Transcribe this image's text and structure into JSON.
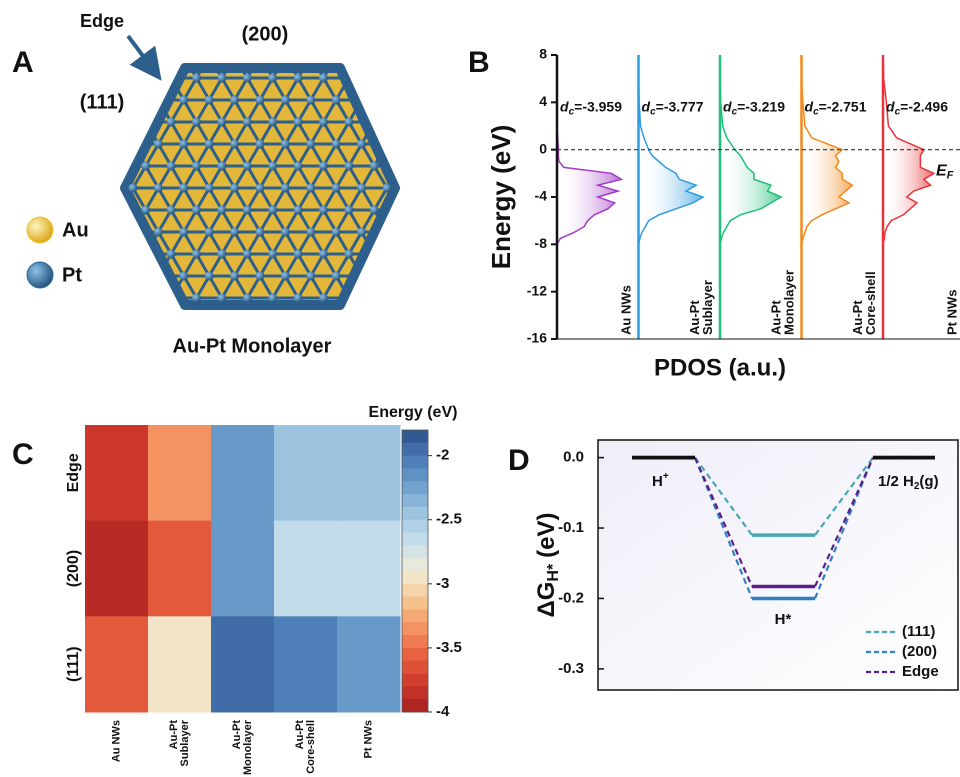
{
  "panel_a": {
    "label": "A",
    "edge": "Edge",
    "facet_top": "(200)",
    "facet_side": "(111)",
    "legend": [
      {
        "name": "Au",
        "color": "#f2c230"
      },
      {
        "name": "Pt",
        "color": "#2e6a9a"
      }
    ],
    "caption": "Au-Pt Monolayer"
  },
  "chart_data": [
    {
      "type": "pdos",
      "panel": "B",
      "xlabel": "PDOS (a.u.)",
      "ylabel": "Energy (eV)",
      "ylim": [
        -16,
        8
      ],
      "yticks": [
        -16,
        -12,
        -8,
        -4,
        0,
        4,
        8
      ],
      "xlim": [
        0,
        1.2
      ],
      "fermi_level": 0,
      "fermi_label": {
        "symbol": "E",
        "subscript": "F"
      },
      "dc_symbol": "d",
      "dc_subscript": "c",
      "dc_sep": "=",
      "y": [
        -8,
        -7.5,
        -7,
        -6.5,
        -6,
        -5.5,
        -5,
        -4.5,
        -4,
        -3.5,
        -3,
        -2.5,
        -2,
        -1.5,
        -1,
        -0.5,
        0,
        1,
        2,
        4,
        6,
        8
      ],
      "series": [
        {
          "name": [
            "Au NWs"
          ],
          "color": "#a23cc7",
          "dc": -3.959,
          "values": [
            0,
            0.05,
            0.25,
            0.4,
            0.45,
            0.55,
            0.75,
            0.85,
            0.6,
            0.9,
            0.6,
            0.95,
            0.8,
            0.1,
            0.03,
            0.02,
            0.02,
            0.01,
            0,
            0,
            0,
            0
          ]
        },
        {
          "name": [
            "Au-Pt",
            "Sublayer"
          ],
          "color": "#2f9be0",
          "dc": -3.777,
          "values": [
            0,
            0.02,
            0.05,
            0.1,
            0.15,
            0.3,
            0.55,
            0.8,
            0.95,
            0.7,
            0.85,
            0.6,
            0.55,
            0.4,
            0.3,
            0.2,
            0.15,
            0.08,
            0.03,
            0.01,
            0,
            0
          ]
        },
        {
          "name": [
            "Au-Pt",
            "Monolayer"
          ],
          "color": "#1fbf7a",
          "dc": -3.219,
          "values": [
            0,
            0.02,
            0.05,
            0.1,
            0.15,
            0.3,
            0.6,
            0.75,
            0.9,
            0.7,
            0.75,
            0.5,
            0.5,
            0.4,
            0.35,
            0.3,
            0.22,
            0.1,
            0.04,
            0.01,
            0,
            0
          ]
        },
        {
          "name": [
            "Au-Pt",
            "Core-shell"
          ],
          "color": "#f28a1e",
          "dc": -2.751,
          "values": [
            0,
            0.02,
            0.05,
            0.08,
            0.15,
            0.3,
            0.5,
            0.7,
            0.55,
            0.65,
            0.75,
            0.6,
            0.6,
            0.5,
            0.55,
            0.5,
            0.6,
            0.15,
            0.05,
            0.02,
            0,
            0
          ]
        },
        {
          "name": [
            "Pt NWs"
          ],
          "color": "#e8333a",
          "dc": -2.496,
          "values": [
            0,
            0.02,
            0.03,
            0.06,
            0.12,
            0.3,
            0.4,
            0.5,
            0.35,
            0.45,
            0.7,
            0.6,
            0.75,
            0.55,
            0.55,
            0.55,
            0.6,
            0.2,
            0.08,
            0.05,
            0.01,
            0
          ]
        }
      ]
    },
    {
      "type": "heatmap",
      "panel": "C",
      "rows": [
        "Edge",
        "(200)",
        "(111)"
      ],
      "columns": [
        [
          "Au NWs"
        ],
        [
          "Au-Pt",
          "Sublayer"
        ],
        [
          "Au-Pt",
          "Monolayer"
        ],
        [
          "Au-Pt",
          "Core-shell"
        ],
        [
          "Pt NWs"
        ]
      ],
      "column_colors": [
        "#a23cc7",
        "#2f9be0",
        "#1fbf7a",
        "#f28a1e",
        "#e8333a"
      ],
      "values": [
        [
          -3.8,
          -3.35,
          -2.2,
          -2.45,
          -2.45
        ],
        [
          -3.9,
          -3.6,
          -2.2,
          -2.65,
          -2.65
        ],
        [
          -3.6,
          -2.95,
          -1.95,
          -2.05,
          -2.2
        ]
      ],
      "colorbar_label": "Energy (eV)",
      "clim": [
        -4,
        -1.8
      ],
      "cticks": [
        -2,
        -2.5,
        -3,
        -3.5,
        -4
      ],
      "colormap": [
        "#a51f1f",
        "#cf392b",
        "#e8603f",
        "#f59563",
        "#f6c992",
        "#efecd6",
        "#c9dfec",
        "#9fc6e0",
        "#6fa1cd",
        "#4a7bb6",
        "#2b4f87"
      ]
    },
    {
      "type": "energy_diagram",
      "panel": "D",
      "ylabel": {
        "text": "ΔG",
        "sub": "H*",
        "unit": "(eV)"
      },
      "ylim": [
        -0.33,
        0.025
      ],
      "yticks": [
        {
          "value": 0,
          "label": "0.0"
        },
        -0.1,
        -0.2,
        -0.3
      ],
      "states": [
        {
          "text": "H",
          "sup": "+"
        },
        {
          "text": "H*"
        },
        {
          "text": "1/2 H",
          "sub": "2",
          "after": "(g)"
        }
      ],
      "level_color": "#111111",
      "series": [
        {
          "name": "(111)",
          "color": "#45a6b5",
          "values": [
            0,
            -0.11,
            0
          ]
        },
        {
          "name": "(200)",
          "color": "#2f7fc6",
          "values": [
            0,
            -0.2,
            0
          ]
        },
        {
          "name": "Edge",
          "color": "#5b1f8a",
          "values": [
            0,
            -0.183,
            0
          ]
        }
      ]
    }
  ]
}
